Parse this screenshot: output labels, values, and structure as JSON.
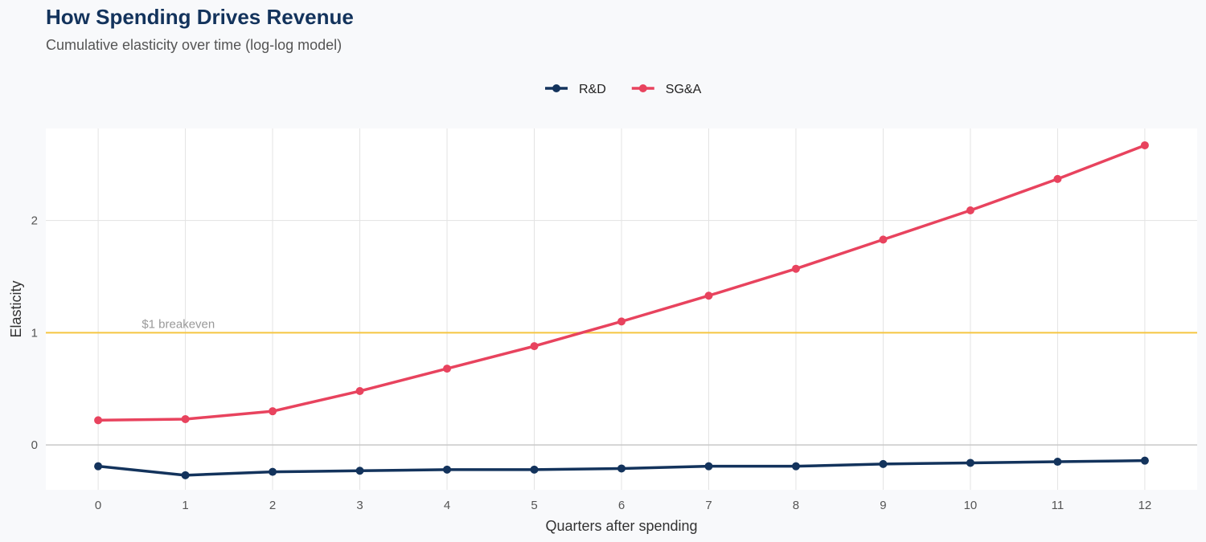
{
  "chart_data": {
    "type": "line",
    "title": "How Spending Drives Revenue",
    "subtitle": "Cumulative elasticity over time (log-log model)",
    "xlabel": "Quarters after spending",
    "ylabel": "Elasticity",
    "x": [
      0,
      1,
      2,
      3,
      4,
      5,
      6,
      7,
      8,
      9,
      10,
      11,
      12
    ],
    "xticks": [
      0,
      1,
      2,
      3,
      4,
      5,
      6,
      7,
      8,
      9,
      10,
      11,
      12
    ],
    "yticks": [
      0,
      1,
      2
    ],
    "xlim": [
      -0.6,
      12.6
    ],
    "ylim": [
      -0.4,
      2.82
    ],
    "grid": true,
    "legend_position": "top",
    "series": [
      {
        "name": "R&D",
        "color": "#13335c",
        "values": [
          -0.19,
          -0.27,
          -0.24,
          -0.23,
          -0.22,
          -0.22,
          -0.21,
          -0.19,
          -0.19,
          -0.17,
          -0.16,
          -0.15,
          -0.14
        ]
      },
      {
        "name": "SG&A",
        "color": "#e8435e",
        "values": [
          0.22,
          0.23,
          0.3,
          0.48,
          0.68,
          0.88,
          1.1,
          1.33,
          1.57,
          1.83,
          2.09,
          2.37,
          2.67
        ]
      }
    ],
    "reference_line": {
      "y": 1,
      "label": "$1 breakeven",
      "color": "#f5c542"
    }
  }
}
